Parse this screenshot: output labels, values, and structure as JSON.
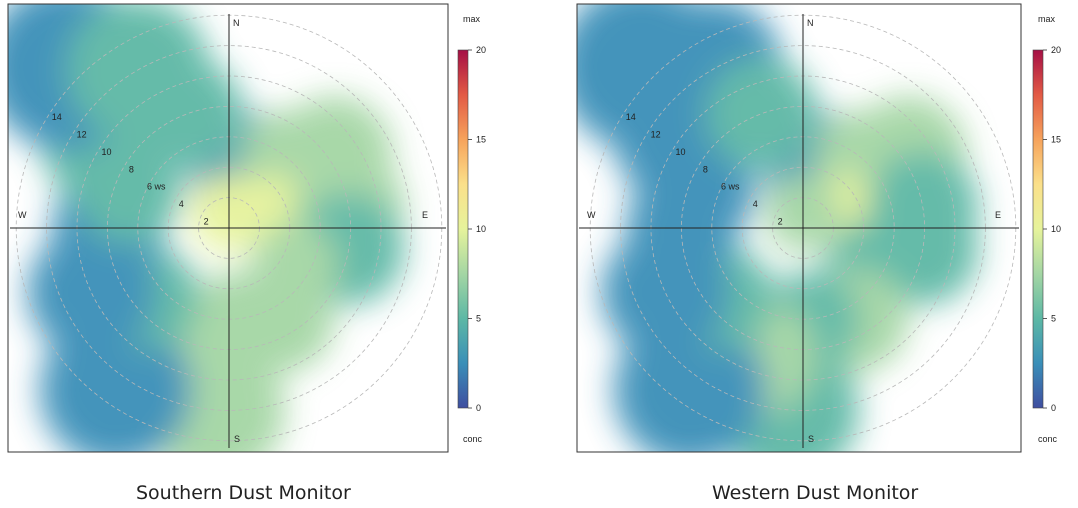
{
  "chart_data": [
    {
      "type": "polar-plot",
      "caption": "Southern Dust Monitor",
      "directions": [
        "N",
        "E",
        "S",
        "W"
      ],
      "radial_axis": {
        "ticks": [
          2,
          4,
          6,
          8,
          10,
          12,
          14
        ],
        "unit_label": "ws",
        "unit_label_at": 6
      },
      "color_key": {
        "top_label": "max",
        "bottom_label": "conc",
        "ticks": [
          0,
          5,
          10,
          15,
          20
        ],
        "range": [
          0,
          20
        ],
        "colors": [
          "#3f4ea0",
          "#3a8fb8",
          "#5db8a5",
          "#a4d6a4",
          "#e6f39b",
          "#fbe08a",
          "#f6a35c",
          "#e25a45",
          "#a50f45"
        ]
      },
      "blobs": [
        {
          "dir": 0,
          "ws": 3,
          "conc": 3.5
        },
        {
          "dir": 20,
          "ws": 5,
          "conc": 2
        },
        {
          "dir": 40,
          "ws": 6,
          "conc": 8
        },
        {
          "dir": 55,
          "ws": 8.5,
          "conc": 8.5
        },
        {
          "dir": 70,
          "ws": 3,
          "conc": 10
        },
        {
          "dir": 80,
          "ws": 8,
          "conc": 6.5
        },
        {
          "dir": 100,
          "ws": 8,
          "conc": 5
        },
        {
          "dir": 120,
          "ws": 5,
          "conc": 6.5
        },
        {
          "dir": 150,
          "ws": 7,
          "conc": 8
        },
        {
          "dir": 175,
          "ws": 6,
          "conc": 8.5
        },
        {
          "dir": 185,
          "ws": 12,
          "conc": 8
        },
        {
          "dir": 200,
          "ws": 9,
          "conc": 8
        },
        {
          "dir": 215,
          "ws": 13,
          "conc": 3
        },
        {
          "dir": 230,
          "ws": 7,
          "conc": 4
        },
        {
          "dir": 245,
          "ws": 10,
          "conc": 2.5
        },
        {
          "dir": 270,
          "ws": 8,
          "conc": 3
        },
        {
          "dir": 290,
          "ws": 7,
          "conc": 4
        },
        {
          "dir": 305,
          "ws": 10,
          "conc": 4.5
        },
        {
          "dir": 315,
          "ws": 15,
          "conc": 3
        },
        {
          "dir": 330,
          "ws": 12,
          "conc": 5.5
        },
        {
          "dir": 340,
          "ws": 8,
          "conc": 6
        },
        {
          "dir": 0,
          "ws": 1,
          "conc": 9
        }
      ]
    },
    {
      "type": "polar-plot",
      "caption": "Western Dust Monitor",
      "directions": [
        "N",
        "E",
        "S",
        "W"
      ],
      "radial_axis": {
        "ticks": [
          2,
          4,
          6,
          8,
          10,
          12,
          14
        ],
        "unit_label": "ws",
        "unit_label_at": 6
      },
      "color_key": {
        "top_label": "max",
        "bottom_label": "conc",
        "ticks": [
          0,
          5,
          10,
          15,
          20
        ],
        "range": [
          0,
          20
        ],
        "colors": [
          "#3f4ea0",
          "#3a8fb8",
          "#5db8a5",
          "#a4d6a4",
          "#e6f39b",
          "#fbe08a",
          "#f6a35c",
          "#e25a45",
          "#a50f45"
        ]
      },
      "blobs": [
        {
          "dir": 0,
          "ws": 3,
          "conc": 3
        },
        {
          "dir": 20,
          "ws": 5,
          "conc": 2.5
        },
        {
          "dir": 40,
          "ws": 6,
          "conc": 7.5
        },
        {
          "dir": 55,
          "ws": 8.5,
          "conc": 8.5
        },
        {
          "dir": 70,
          "ws": 3,
          "conc": 11
        },
        {
          "dir": 80,
          "ws": 8,
          "conc": 6
        },
        {
          "dir": 100,
          "ws": 8,
          "conc": 4
        },
        {
          "dir": 120,
          "ws": 5,
          "conc": 6
        },
        {
          "dir": 150,
          "ws": 7,
          "conc": 7.5
        },
        {
          "dir": 175,
          "ws": 6,
          "conc": 6
        },
        {
          "dir": 185,
          "ws": 12,
          "conc": 5
        },
        {
          "dir": 200,
          "ws": 9,
          "conc": 7
        },
        {
          "dir": 215,
          "ws": 13,
          "conc": 3
        },
        {
          "dir": 230,
          "ws": 7,
          "conc": 4.5
        },
        {
          "dir": 245,
          "ws": 10,
          "conc": 2.5
        },
        {
          "dir": 270,
          "ws": 8,
          "conc": 1.5
        },
        {
          "dir": 290,
          "ws": 7,
          "conc": 3
        },
        {
          "dir": 305,
          "ws": 10,
          "conc": 3.5
        },
        {
          "dir": 315,
          "ws": 15,
          "conc": 2.5
        },
        {
          "dir": 330,
          "ws": 12,
          "conc": 3.5
        },
        {
          "dir": 340,
          "ws": 8,
          "conc": 4
        },
        {
          "dir": 0,
          "ws": 1,
          "conc": 8.5
        }
      ]
    }
  ]
}
